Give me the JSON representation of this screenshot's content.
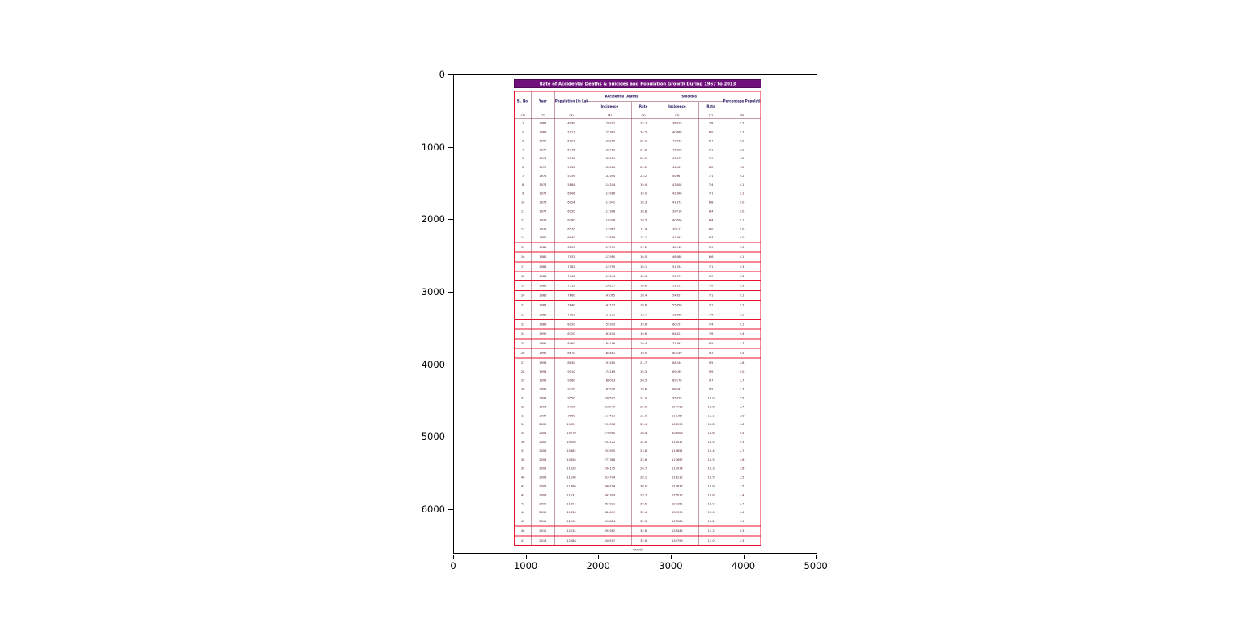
{
  "axes": {
    "x_ticks": [
      "0",
      "1000",
      "2000",
      "3000",
      "4000",
      "5000"
    ],
    "y_ticks": [
      "0",
      "1000",
      "2000",
      "3000",
      "4000",
      "5000",
      "6000"
    ]
  },
  "chart_data": {
    "type": "table",
    "title": "Rate of Accidental Deaths & Suicides and Population Growth During 1967 to 2013",
    "caption": "(xxx)",
    "header": {
      "sl_no": "Sl. No.",
      "year": "Year",
      "population": "Population (in Lakh)",
      "accidental_deaths": "Accidental Deaths",
      "suicides": "Suicides",
      "incidence": "Incidence",
      "rate": "Rate",
      "growth": "Percentage Population growth"
    },
    "units_row": [
      "(1)",
      "(2)",
      "(3)",
      "(4)",
      "(5)",
      "(6)",
      "(7)",
      "(8)"
    ],
    "rows": [
      [
        "1",
        "1967",
        "4990",
        "128292",
        "25.7",
        "38829",
        "7.8",
        "2.2"
      ],
      [
        "2",
        "1968",
        "5111",
        "125382",
        "24.5",
        "40888",
        "8.0",
        "2.2"
      ],
      [
        "3",
        "1969",
        "5221",
        "132206",
        "25.3",
        "43633",
        "8.4",
        "2.2"
      ],
      [
        "4",
        "1970",
        "5345",
        "132702",
        "24.8",
        "48428",
        "9.1",
        "2.2"
      ],
      [
        "5",
        "1971",
        "5512",
        "135001",
        "24.5",
        "43675",
        "7.9",
        "2.2"
      ],
      [
        "6",
        "1972",
        "5636",
        "136584",
        "24.2",
        "46061",
        "8.2",
        "2.2"
      ],
      [
        "7",
        "1973",
        "5759",
        "133394",
        "23.2",
        "40967",
        "7.1",
        "2.2"
      ],
      [
        "8",
        "1974",
        "5884",
        "114204",
        "19.4",
        "43808",
        "7.4",
        "2.1"
      ],
      [
        "9",
        "1975",
        "6006",
        "113916",
        "19.0",
        "42890",
        "7.1",
        "2.1"
      ],
      [
        "10",
        "1976",
        "6124",
        "111941",
        "18.3",
        "41672",
        "6.8",
        "2.0"
      ],
      [
        "11",
        "1977",
        "6250",
        "117306",
        "18.8",
        "39718",
        "6.4",
        "2.0"
      ],
      [
        "12",
        "1978",
        "6380",
        "118336",
        "18.5",
        "40706",
        "6.4",
        "2.1"
      ],
      [
        "13",
        "1979",
        "6510",
        "112967",
        "17.4",
        "39117",
        "6.0",
        "2.0"
      ],
      [
        "14",
        "1980",
        "6640",
        "113819",
        "17.1",
        "41663",
        "6.3",
        "2.0"
      ],
      [
        "15",
        "1981",
        "6850",
        "117591",
        "17.2",
        "40245",
        "5.9",
        "2.3"
      ],
      [
        "16",
        "1982",
        "7052",
        "112980",
        "16.0",
        "46588",
        "6.6",
        "2.1"
      ],
      [
        "17",
        "1983",
        "7182",
        "115759",
        "16.1",
        "51054",
        "7.1",
        "2.3"
      ],
      [
        "18",
        "1984",
        "7346",
        "119544",
        "16.3",
        "50571",
        "6.9",
        "2.3"
      ],
      [
        "19",
        "1985",
        "7512",
        "126257",
        "16.8",
        "52811",
        "7.0",
        "2.3"
      ],
      [
        "20",
        "1986",
        "7660",
        "141065",
        "18.4",
        "54357",
        "7.1",
        "2.1"
      ],
      [
        "21",
        "1987",
        "7840",
        "147107",
        "18.8",
        "55950",
        "7.1",
        "2.2"
      ],
      [
        "22",
        "1988",
        "7962",
        "157232",
        "19.7",
        "58568",
        "7.4",
        "2.2"
      ],
      [
        "23",
        "1989",
        "8120",
        "159393",
        "19.6",
        "60157",
        "7.4",
        "2.1"
      ],
      [
        "24",
        "1990",
        "8320",
        "163440",
        "19.6",
        "64621",
        "7.8",
        "2.4"
      ],
      [
        "25",
        "1991",
        "8460",
        "164116",
        "19.4",
        "71897",
        "8.5",
        "1.7"
      ],
      [
        "26",
        "1992",
        "8670",
        "164481",
        "19.0",
        "80149",
        "9.2",
        "2.5"
      ],
      [
        "27",
        "1993",
        "8830",
        "191410",
        "21.7",
        "84244",
        "9.5",
        "1.8"
      ],
      [
        "28",
        "1994",
        "9010",
        "174189",
        "19.3",
        "89195",
        "9.9",
        "2.0"
      ],
      [
        "29",
        "1995",
        "9160",
        "188003",
        "20.5",
        "89178",
        "9.7",
        "1.7"
      ],
      [
        "30",
        "1996",
        "9320",
        "182520",
        "19.6",
        "88241",
        "9.5",
        "1.7"
      ],
      [
        "31",
        "1997",
        "9550",
        "200522",
        "21.0",
        "95829",
        "10.0",
        "2.5"
      ],
      [
        "32",
        "1998",
        "9709",
        "218949",
        "22.6",
        "104713",
        "10.8",
        "1.7"
      ],
      [
        "33",
        "1999",
        "9866",
        "217415",
        "22.0",
        "110587",
        "11.2",
        "1.6"
      ],
      [
        "34",
        "2000",
        "10021",
        "254398",
        "25.4",
        "108593",
        "10.8",
        "1.6"
      ],
      [
        "35",
        "2001",
        "10270",
        "270910",
        "26.4",
        "108506",
        "10.6",
        "2.5"
      ],
      [
        "36",
        "2002",
        "10506",
        "252122",
        "24.0",
        "110417",
        "10.5",
        "2.3"
      ],
      [
        "37",
        "2003",
        "10682",
        "253905",
        "23.8",
        "110851",
        "10.4",
        "1.7"
      ],
      [
        "38",
        "2004",
        "10856",
        "277368",
        "25.6",
        "113697",
        "10.5",
        "1.6"
      ],
      [
        "39",
        "2005",
        "11028",
        "294175",
        "26.7",
        "113914",
        "10.3",
        "1.6"
      ],
      [
        "40",
        "2006",
        "11198",
        "314704",
        "28.1",
        "118112",
        "10.5",
        "1.5"
      ],
      [
        "41",
        "2007",
        "11366",
        "340794",
        "30.0",
        "122637",
        "10.8",
        "1.5"
      ],
      [
        "42",
        "2008",
        "11531",
        "342309",
        "29.7",
        "125017",
        "10.8",
        "1.4"
      ],
      [
        "43",
        "2009",
        "11694",
        "357021",
        "30.5",
        "127151",
        "10.9",
        "1.4"
      ],
      [
        "44",
        "2010",
        "11858",
        "384649",
        "32.4",
        "134599",
        "11.4",
        "1.4"
      ],
      [
        "45",
        "2011",
        "12102",
        "390884",
        "32.3",
        "135585",
        "11.2",
        "2.1"
      ],
      [
        "46",
        "2012",
        "12134",
        "394982",
        "32.6",
        "135445",
        "11.2",
        "0.3"
      ],
      [
        "47",
        "2013",
        "12288",
        "400517",
        "32.6",
        "134799",
        "11.0",
        "1.3"
      ]
    ],
    "boxed_rows": [
      15,
      16,
      17,
      18,
      19,
      20,
      21,
      22,
      23,
      24,
      25,
      26,
      27,
      46,
      47
    ],
    "colors": {
      "title_bg": "#70107c",
      "table_border": "#e8112d",
      "text": "#4a1030",
      "header_text": "#2a1560"
    }
  }
}
